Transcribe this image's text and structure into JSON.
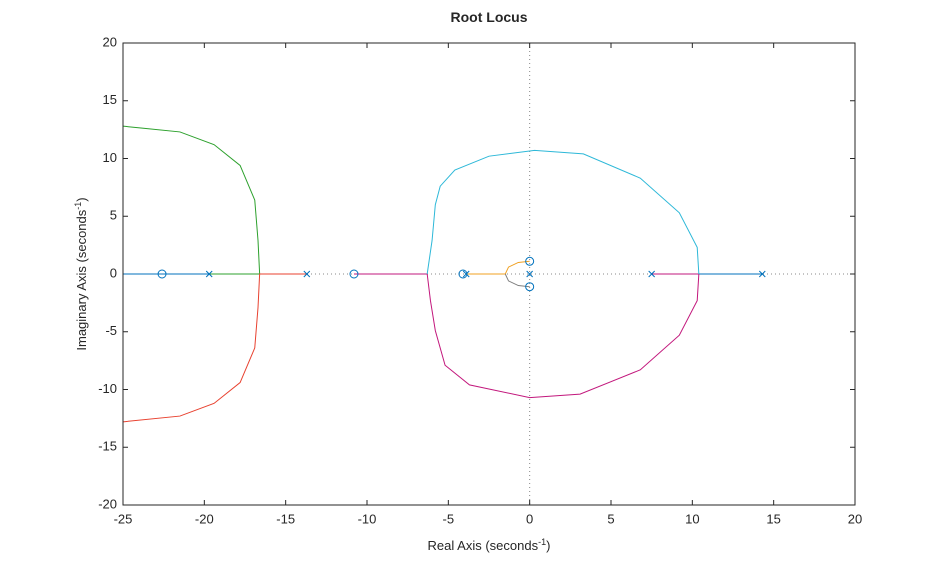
{
  "chart_data": {
    "type": "rootlocus",
    "title": "Root Locus",
    "xlabel": {
      "text": "Real  Axis  (seconds",
      "sup": "-1",
      "tail": ")"
    },
    "ylabel": {
      "text": "Imaginary  Axis  (seconds",
      "sup": "-1",
      "tail": ")"
    },
    "xlim": [
      -25,
      20
    ],
    "ylim": [
      -20,
      20
    ],
    "xticks": [
      -25,
      -20,
      -15,
      -10,
      -5,
      0,
      5,
      10,
      15,
      20
    ],
    "yticks": [
      -20,
      -15,
      -10,
      -5,
      0,
      5,
      10,
      15,
      20
    ],
    "marker_color": "#0072bd",
    "poles": {
      "x": [
        -19.7,
        -13.7,
        -3.9,
        0,
        7.5,
        14.3
      ],
      "y": [
        0,
        0,
        0,
        0,
        0,
        0
      ]
    },
    "zeros": {
      "x": [
        -22.6,
        -10.8,
        -4.1,
        0,
        0
      ],
      "y": [
        0,
        0,
        0,
        1.1,
        -1.1
      ]
    },
    "series": [
      {
        "color": "#0072bd",
        "x": [
          -25,
          -19.7,
          null,
          10.4,
          14.3
        ],
        "y": [
          0,
          0,
          null,
          0,
          0
        ]
      },
      {
        "color": "#2ca02c",
        "x": [
          -19.7,
          -16.6,
          -16.7,
          -16.9,
          -17.8,
          -19.4,
          -21.5,
          -25
        ],
        "y": [
          0,
          0,
          2.9,
          6.4,
          9.4,
          11.2,
          12.3,
          12.8
        ]
      },
      {
        "color": "#e8412f",
        "x": [
          -13.7,
          -16.6,
          -16.7,
          -16.9,
          -17.8,
          -19.4,
          -21.5,
          -25
        ],
        "y": [
          0,
          0,
          -2.9,
          -6.4,
          -9.4,
          -11.2,
          -12.3,
          -12.8
        ]
      },
      {
        "color": "#c2177c",
        "x": [
          -10.8,
          -6.3,
          -6.1,
          -5.8,
          -5.2,
          -3.7,
          0,
          3.1,
          6.8,
          9.2,
          10.3,
          10.4,
          null,
          7.5,
          10.4
        ],
        "y": [
          0,
          0,
          -2.3,
          -4.9,
          -7.9,
          -9.6,
          -10.7,
          -10.4,
          -8.3,
          -5.3,
          -2.3,
          0,
          null,
          0,
          0
        ]
      },
      {
        "color": "#2db8d8",
        "x": [
          -6.3,
          -6.0,
          -5.8,
          -5.5,
          -4.6,
          -2.5,
          0.3,
          3.3,
          6.8,
          9.2,
          10.3,
          10.4
        ],
        "y": [
          0,
          2.9,
          6.0,
          7.6,
          9.0,
          10.2,
          10.7,
          10.4,
          8.3,
          5.3,
          2.3,
          0
        ]
      },
      {
        "color": "#f0a020",
        "x": [
          -3.9,
          -1.5,
          -1.3,
          -0.7,
          0
        ],
        "y": [
          0,
          0,
          0.6,
          1.0,
          1.1
        ]
      },
      {
        "color": "#7f7f7f",
        "x": [
          -1.5,
          -1.3,
          -0.7,
          0
        ],
        "y": [
          0,
          -0.6,
          -1.0,
          -1.1
        ]
      }
    ]
  }
}
